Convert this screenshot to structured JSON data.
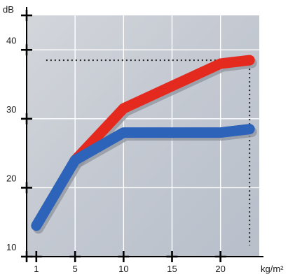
{
  "chart_data": {
    "type": "line",
    "ylabel": "dB",
    "xlabel": "kg/m²",
    "x_ticks": [
      "1",
      "5",
      "10",
      "15",
      "20"
    ],
    "y_ticks": [
      "10",
      "20",
      "30",
      "40"
    ],
    "xlim": [
      0,
      24
    ],
    "ylim": [
      10,
      45
    ],
    "grid": true,
    "series": [
      {
        "color": "#e42a1f",
        "x": [
          5,
          10,
          20,
          23
        ],
        "y": [
          24,
          31.5,
          38,
          38.5
        ]
      },
      {
        "color": "#2d63b8",
        "x": [
          1,
          5,
          10,
          20,
          23
        ],
        "y": [
          14.5,
          24,
          28,
          28,
          28.5
        ]
      }
    ],
    "reference_lines": [
      {
        "orientation": "horizontal",
        "value": 38.5,
        "from_x": 1,
        "to_x": 23
      },
      {
        "orientation": "vertical",
        "value": 23,
        "from_y": 10,
        "to_y": 38.5
      }
    ],
    "colors": {
      "plot_background": "#c6cbd3",
      "grid": "#ffffff",
      "axes": "#000000"
    }
  }
}
